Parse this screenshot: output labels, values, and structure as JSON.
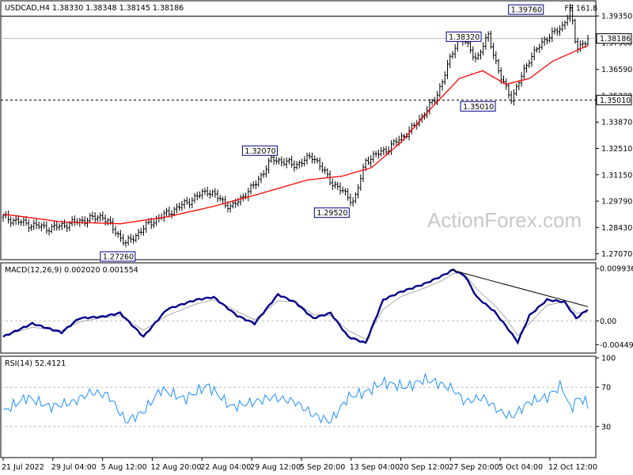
{
  "chart_data": {
    "type": "candlestick",
    "header": "USDCAD,H4 1.38330 1.38348 1.38145 1.38186",
    "watermark": "ActionForex.com",
    "price_axis": {
      "ticks": [
        "1.39350",
        "1.37960",
        "1.36590",
        "1.35220",
        "1.33870",
        "1.32510",
        "1.31150",
        "1.29790",
        "1.28430",
        "1.27070"
      ],
      "tick_values": [
        1.3935,
        1.3796,
        1.3659,
        1.3522,
        1.3387,
        1.3251,
        1.3115,
        1.2979,
        1.2843,
        1.2707
      ],
      "ylim": [
        1.2685,
        1.4005
      ],
      "current_price_label": "1.38186",
      "current_price": 1.38186,
      "support_label": "1.35010",
      "support_price": 1.3501,
      "top_line_price": 1.3934
    },
    "x_axis": {
      "labels": [
        "21 Jul 2022",
        "29 Jul 04:00",
        "5 Aug 12:00",
        "12 Aug 20:00",
        "22 Aug 04:00",
        "29 Aug 12:00",
        "5 Sep 20:00",
        "13 Sep 04:00",
        "20 Sep 12:00",
        "27 Sep 20:00",
        "5 Oct 04:00",
        "12 Oct 12:00"
      ],
      "positions": [
        0,
        0.085,
        0.17,
        0.255,
        0.34,
        0.425,
        0.51,
        0.595,
        0.68,
        0.765,
        0.85,
        0.935
      ]
    },
    "price_path": [
      [
        0,
        1.2895
      ],
      [
        0.04,
        1.2862
      ],
      [
        0.08,
        1.2838
      ],
      [
        0.12,
        1.2868
      ],
      [
        0.17,
        1.2902
      ],
      [
        0.21,
        1.2758
      ],
      [
        0.25,
        1.2865
      ],
      [
        0.3,
        1.2948
      ],
      [
        0.35,
        1.3035
      ],
      [
        0.39,
        1.2945
      ],
      [
        0.43,
        1.3062
      ],
      [
        0.46,
        1.3198
      ],
      [
        0.5,
        1.3165
      ],
      [
        0.53,
        1.3212
      ],
      [
        0.56,
        1.3082
      ],
      [
        0.6,
        1.2975
      ],
      [
        0.62,
        1.3188
      ],
      [
        0.66,
        1.3255
      ],
      [
        0.7,
        1.3355
      ],
      [
        0.74,
        1.3512
      ],
      [
        0.78,
        1.3838
      ],
      [
        0.81,
        1.3712
      ],
      [
        0.83,
        1.3836
      ],
      [
        0.85,
        1.3618
      ],
      [
        0.87,
        1.3508
      ],
      [
        0.9,
        1.3715
      ],
      [
        0.93,
        1.3825
      ],
      [
        0.955,
        1.3872
      ],
      [
        0.97,
        1.3972
      ],
      [
        0.98,
        1.3765
      ],
      [
        1,
        1.3818
      ]
    ],
    "ma_path": [
      [
        0,
        1.2912
      ],
      [
        0.1,
        1.2872
      ],
      [
        0.2,
        1.2862
      ],
      [
        0.28,
        1.2898
      ],
      [
        0.36,
        1.2952
      ],
      [
        0.44,
        1.3018
      ],
      [
        0.52,
        1.3088
      ],
      [
        0.58,
        1.3108
      ],
      [
        0.63,
        1.3152
      ],
      [
        0.68,
        1.3282
      ],
      [
        0.73,
        1.3452
      ],
      [
        0.78,
        1.3612
      ],
      [
        0.82,
        1.3652
      ],
      [
        0.86,
        1.3582
      ],
      [
        0.9,
        1.3612
      ],
      [
        0.94,
        1.3702
      ],
      [
        1,
        1.3782
      ]
    ],
    "annotations": [
      {
        "label": "1.39760",
        "pos": 0.932,
        "price": 1.3976
      },
      {
        "label": "1.38320",
        "pos": 0.766,
        "price": 1.3832
      },
      {
        "label": "1.35010",
        "pos": 0.812,
        "price": 1.3501
      },
      {
        "label": "1.32070",
        "pos": 0.439,
        "price": 1.3207
      },
      {
        "label": "1.29520",
        "pos": 0.562,
        "price": 1.2952
      },
      {
        "label": "1.27260",
        "pos": 0.196,
        "price": 1.2726
      }
    ],
    "fib_label": "FE 161.8",
    "macd": {
      "label": "MACD(12,26,9) 0.002020 0.001554",
      "ticks": [
        "0.009936",
        "0.00",
        "-0.004492"
      ],
      "tick_values": [
        0.009936,
        0,
        -0.004492
      ],
      "ylim": [
        -0.0058,
        0.0107
      ],
      "path": [
        [
          0,
          -0.003
        ],
        [
          0.05,
          -0.0005
        ],
        [
          0.1,
          -0.0022
        ],
        [
          0.13,
          0.0005
        ],
        [
          0.17,
          0.0008
        ],
        [
          0.2,
          0.0015
        ],
        [
          0.24,
          -0.003
        ],
        [
          0.28,
          0.0022
        ],
        [
          0.33,
          0.004
        ],
        [
          0.36,
          0.0045
        ],
        [
          0.4,
          0.001
        ],
        [
          0.43,
          -0.0005
        ],
        [
          0.47,
          0.005
        ],
        [
          0.5,
          0.0035
        ],
        [
          0.53,
          0.0005
        ],
        [
          0.56,
          0.0015
        ],
        [
          0.59,
          -0.003
        ],
        [
          0.62,
          -0.0042
        ],
        [
          0.65,
          0.004
        ],
        [
          0.68,
          0.0055
        ],
        [
          0.72,
          0.007
        ],
        [
          0.75,
          0.0085
        ],
        [
          0.77,
          0.0097
        ],
        [
          0.79,
          0.0085
        ],
        [
          0.81,
          0.0045
        ],
        [
          0.84,
          0.0018
        ],
        [
          0.86,
          -0.001
        ],
        [
          0.88,
          -0.004
        ],
        [
          0.9,
          0.001
        ],
        [
          0.93,
          0.004
        ],
        [
          0.96,
          0.0036
        ],
        [
          0.98,
          0.0005
        ],
        [
          1,
          0.0022
        ]
      ],
      "signal_path": [
        [
          0,
          -0.0028
        ],
        [
          0.05,
          -0.0012
        ],
        [
          0.1,
          -0.0018
        ],
        [
          0.13,
          -0.0002
        ],
        [
          0.17,
          0.0006
        ],
        [
          0.2,
          0.001
        ],
        [
          0.24,
          -0.0018
        ],
        [
          0.28,
          0.001
        ],
        [
          0.33,
          0.0032
        ],
        [
          0.36,
          0.004
        ],
        [
          0.4,
          0.0018
        ],
        [
          0.43,
          0.0002
        ],
        [
          0.47,
          0.0038
        ],
        [
          0.5,
          0.0036
        ],
        [
          0.53,
          0.0012
        ],
        [
          0.56,
          0.001
        ],
        [
          0.59,
          -0.0018
        ],
        [
          0.62,
          -0.0035
        ],
        [
          0.65,
          0.0022
        ],
        [
          0.68,
          0.0046
        ],
        [
          0.72,
          0.0062
        ],
        [
          0.75,
          0.0076
        ],
        [
          0.77,
          0.009
        ],
        [
          0.79,
          0.0088
        ],
        [
          0.81,
          0.006
        ],
        [
          0.84,
          0.003
        ],
        [
          0.86,
          0.0005
        ],
        [
          0.88,
          -0.0028
        ],
        [
          0.9,
          -0.0005
        ],
        [
          0.93,
          0.003
        ],
        [
          0.96,
          0.0036
        ],
        [
          0.98,
          0.0015
        ],
        [
          1,
          0.0016
        ]
      ],
      "trendline": [
        [
          0.765,
          0.0097
        ],
        [
          1,
          0.0027
        ]
      ]
    },
    "rsi": {
      "label": "RSI(14) 52.4121",
      "ticks": [
        "100",
        "70",
        "30"
      ],
      "tick_values": [
        100,
        70,
        30
      ],
      "ylim": [
        0,
        100
      ],
      "path": [
        [
          0,
          45
        ],
        [
          0.04,
          60
        ],
        [
          0.08,
          50
        ],
        [
          0.12,
          55
        ],
        [
          0.15,
          65
        ],
        [
          0.18,
          62
        ],
        [
          0.21,
          35
        ],
        [
          0.24,
          45
        ],
        [
          0.27,
          68
        ],
        [
          0.31,
          58
        ],
        [
          0.35,
          72
        ],
        [
          0.39,
          50
        ],
        [
          0.43,
          55
        ],
        [
          0.46,
          60
        ],
        [
          0.5,
          55
        ],
        [
          0.53,
          42
        ],
        [
          0.56,
          35
        ],
        [
          0.59,
          60
        ],
        [
          0.62,
          65
        ],
        [
          0.65,
          75
        ],
        [
          0.69,
          70
        ],
        [
          0.72,
          78
        ],
        [
          0.74,
          75
        ],
        [
          0.77,
          68
        ],
        [
          0.79,
          55
        ],
        [
          0.82,
          60
        ],
        [
          0.85,
          45
        ],
        [
          0.87,
          40
        ],
        [
          0.9,
          55
        ],
        [
          0.93,
          60
        ],
        [
          0.955,
          72
        ],
        [
          0.97,
          48
        ],
        [
          0.985,
          60
        ],
        [
          1,
          52
        ]
      ]
    },
    "colors": {
      "price": "#000000",
      "ma": "#ff0000",
      "macd": "#00008b",
      "signal": "#a9a9a9",
      "rsi": "#1e90ff",
      "grid": "#a9a9a9"
    }
  }
}
